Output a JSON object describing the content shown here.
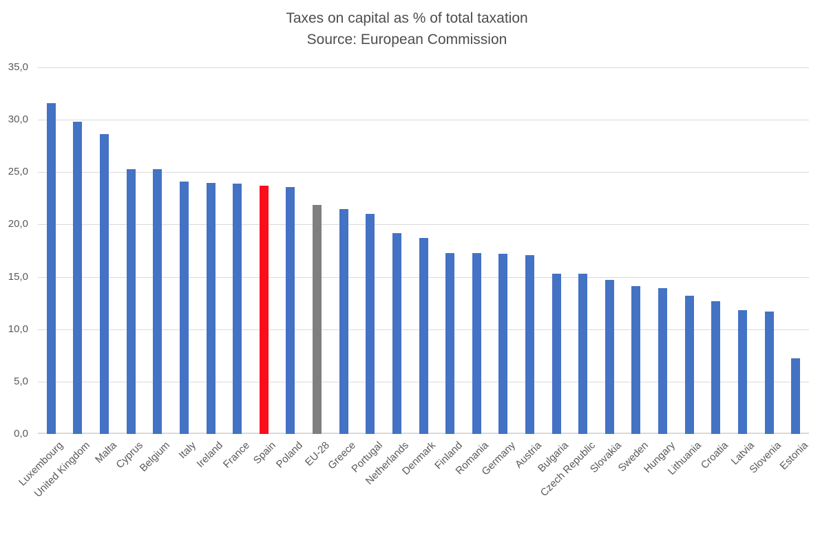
{
  "chart_data": {
    "type": "bar",
    "title": "Taxes on capital as % of total taxation",
    "subtitle": "Source: European Commission",
    "categories": [
      "Luxembourg",
      "United Kingdom",
      "Malta",
      "Cyprus",
      "Belgium",
      "Italy",
      "Ireland",
      "France",
      "Spain",
      "Poland",
      "EU-28",
      "Greece",
      "Portugal",
      "Netherlands",
      "Denmark",
      "Finland",
      "Romania",
      "Germany",
      "Austria",
      "Bulgaria",
      "Czech Republic",
      "Slovakia",
      "Sweden",
      "Hungary",
      "Lithuania",
      "Croatia",
      "Latvia",
      "Slovenia",
      "Estonia"
    ],
    "values": [
      31.6,
      29.8,
      28.6,
      25.3,
      25.3,
      24.1,
      24.0,
      23.9,
      23.7,
      23.6,
      21.9,
      21.5,
      21.0,
      19.2,
      18.7,
      17.3,
      17.3,
      17.2,
      17.1,
      15.3,
      15.3,
      14.7,
      14.1,
      13.9,
      13.2,
      12.7,
      11.8,
      11.7,
      7.2
    ],
    "bar_color_default": "#4472C4",
    "highlight_colors": {
      "Spain": "#FB0D1B",
      "EU-28": "#7F7F7F"
    },
    "ylim": [
      0,
      35
    ],
    "ytick_step": 5,
    "yticks": [
      {
        "value": 35,
        "label": "35,0"
      },
      {
        "value": 30,
        "label": "30,0"
      },
      {
        "value": 25,
        "label": "25,0"
      },
      {
        "value": 20,
        "label": "20,0"
      },
      {
        "value": 15,
        "label": "15,0"
      },
      {
        "value": 10,
        "label": "10,0"
      },
      {
        "value": 5,
        "label": "5,0"
      },
      {
        "value": 0,
        "label": "0,0"
      }
    ],
    "grid": true,
    "legend": "none",
    "xlabel": "",
    "ylabel": "",
    "axis_text_color": "#595959",
    "gridline_color": "#D9D9D9",
    "title_color": "#4D4D4D"
  }
}
